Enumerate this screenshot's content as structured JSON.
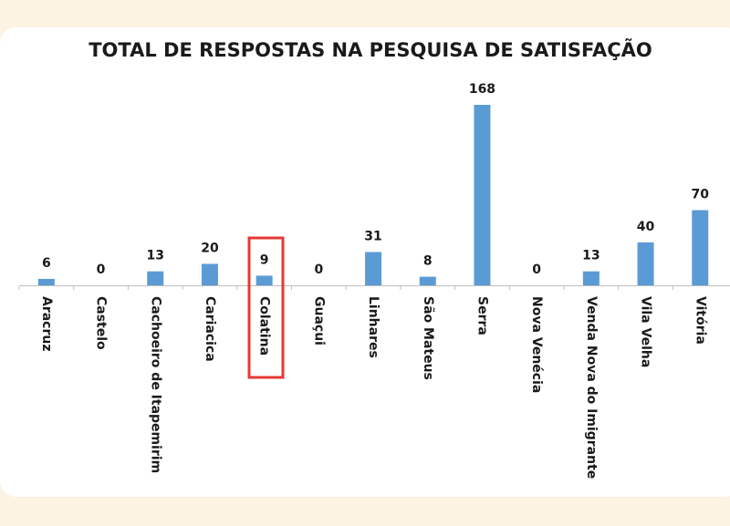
{
  "chart_data": {
    "type": "bar",
    "title": "TOTAL DE RESPOSTAS NA PESQUISA DE SATISFAÇÃO",
    "categories": [
      "Aracruz",
      "Castelo",
      "Cachoeiro de Itapemirim",
      "Cariacica",
      "Colatina",
      "Guaçui",
      "Linhares",
      "São Mateus",
      "Serra",
      "Nova Venécia",
      "Venda Nova do Imigrante",
      "Vila Velha",
      "Vitória"
    ],
    "values": [
      6,
      0,
      13,
      20,
      9,
      0,
      31,
      8,
      168,
      0,
      13,
      40,
      70
    ],
    "color": "#5b9bd5"
  }
}
